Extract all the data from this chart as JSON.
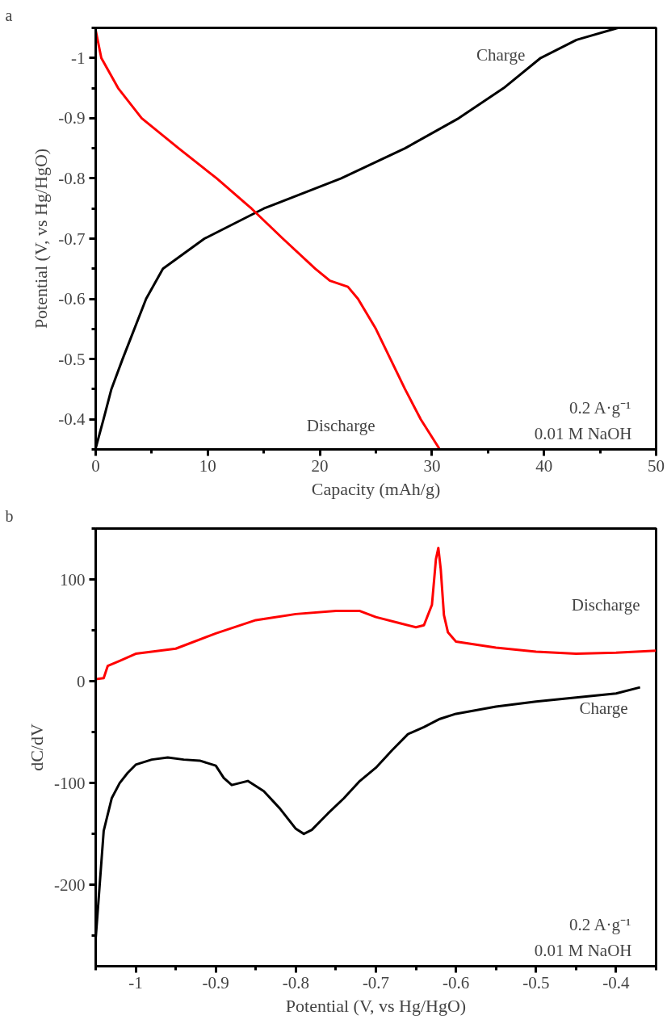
{
  "chart_data": [
    {
      "type": "line",
      "title": "a",
      "xlabel": "Capacity (mAh/g)",
      "ylabel": "Potential (V, vs Hg/HgO)",
      "xlim": [
        0,
        50
      ],
      "xticks": [
        0,
        10,
        20,
        30,
        40,
        50
      ],
      "ylim": [
        -0.35,
        -1.05
      ],
      "yticks": [
        -1,
        -0.9,
        -0.8,
        -0.7,
        -0.6,
        -0.5,
        -0.4
      ],
      "grid": false,
      "legend": false,
      "marker": "none",
      "line_style": "solid",
      "annotations": [
        "0.2 A·g⁻¹",
        "0.01 M NaOH"
      ],
      "series": [
        {
          "name": "Charge",
          "color": "#000000",
          "x": [
            0,
            0.7,
            1.4,
            2.4,
            4.5,
            6.0,
            9.7,
            15.0,
            21.9,
            27.6,
            32.4,
            36.4,
            39.7,
            42.9,
            46.6
          ],
          "values": [
            -0.352,
            -0.4,
            -0.45,
            -0.5,
            -0.6,
            -0.65,
            -0.7,
            -0.75,
            -0.8,
            -0.85,
            -0.9,
            -0.95,
            -1.0,
            -1.03,
            -1.05
          ]
        },
        {
          "name": "Discharge",
          "color": "#ff0000",
          "x": [
            0,
            0.5,
            2.0,
            4.1,
            7.4,
            10.8,
            13.9,
            16.7,
            19.6,
            20.9,
            22.5,
            23.4,
            25.0,
            26.3,
            27.6,
            29.0,
            30.7
          ],
          "values": [
            -1.046,
            -1.0,
            -0.95,
            -0.9,
            -0.85,
            -0.8,
            -0.75,
            -0.7,
            -0.65,
            -0.63,
            -0.62,
            -0.6,
            -0.55,
            -0.5,
            -0.45,
            -0.4,
            -0.35
          ]
        }
      ]
    },
    {
      "type": "line",
      "title": "b",
      "xlabel": "Potential (V, vs Hg/HgO)",
      "ylabel": "dC/dV",
      "xlim": [
        -1.05,
        -0.35
      ],
      "xticks": [
        -1,
        -0.9,
        -0.8,
        -0.7,
        -0.6,
        -0.5,
        -0.4
      ],
      "ylim": [
        -280,
        150
      ],
      "yticks": [
        -200,
        -100,
        0,
        100
      ],
      "grid": false,
      "legend": false,
      "marker": "none",
      "line_style": "solid",
      "annotations": [
        "0.2 A·g⁻¹",
        "0.01 M NaOH"
      ],
      "series": [
        {
          "name": "Discharge",
          "color": "#ff0000",
          "x": [
            -1.05,
            -1.04,
            -1.035,
            -1.02,
            -1.0,
            -0.95,
            -0.9,
            -0.85,
            -0.8,
            -0.75,
            -0.72,
            -0.7,
            -0.67,
            -0.65,
            -0.64,
            -0.63,
            -0.625,
            -0.622,
            -0.619,
            -0.615,
            -0.61,
            -0.6,
            -0.55,
            -0.5,
            -0.45,
            -0.4,
            -0.35
          ],
          "values": [
            2,
            3,
            15,
            20,
            27,
            32,
            47,
            60,
            66,
            69,
            69,
            63,
            57,
            53,
            55,
            75,
            120,
            131,
            110,
            65,
            48,
            39,
            33,
            29,
            27,
            28,
            30
          ]
        },
        {
          "name": "Charge",
          "color": "#000000",
          "x": [
            -1.05,
            -1.04,
            -1.03,
            -1.02,
            -1.01,
            -1.0,
            -0.98,
            -0.96,
            -0.94,
            -0.92,
            -0.9,
            -0.89,
            -0.88,
            -0.87,
            -0.86,
            -0.84,
            -0.82,
            -0.8,
            -0.79,
            -0.78,
            -0.76,
            -0.74,
            -0.72,
            -0.7,
            -0.68,
            -0.66,
            -0.64,
            -0.62,
            -0.6,
            -0.55,
            -0.5,
            -0.45,
            -0.4,
            -0.37
          ],
          "values": [
            -253,
            -147,
            -115,
            -100,
            -90,
            -82,
            -77,
            -75,
            -77,
            -78,
            -83,
            -95,
            -102,
            -100,
            -98,
            -108,
            -125,
            -145,
            -150,
            -146,
            -130,
            -115,
            -98,
            -85,
            -68,
            -52,
            -45,
            -37,
            -32,
            -25,
            -20,
            -16,
            -12,
            -6
          ]
        }
      ]
    }
  ]
}
